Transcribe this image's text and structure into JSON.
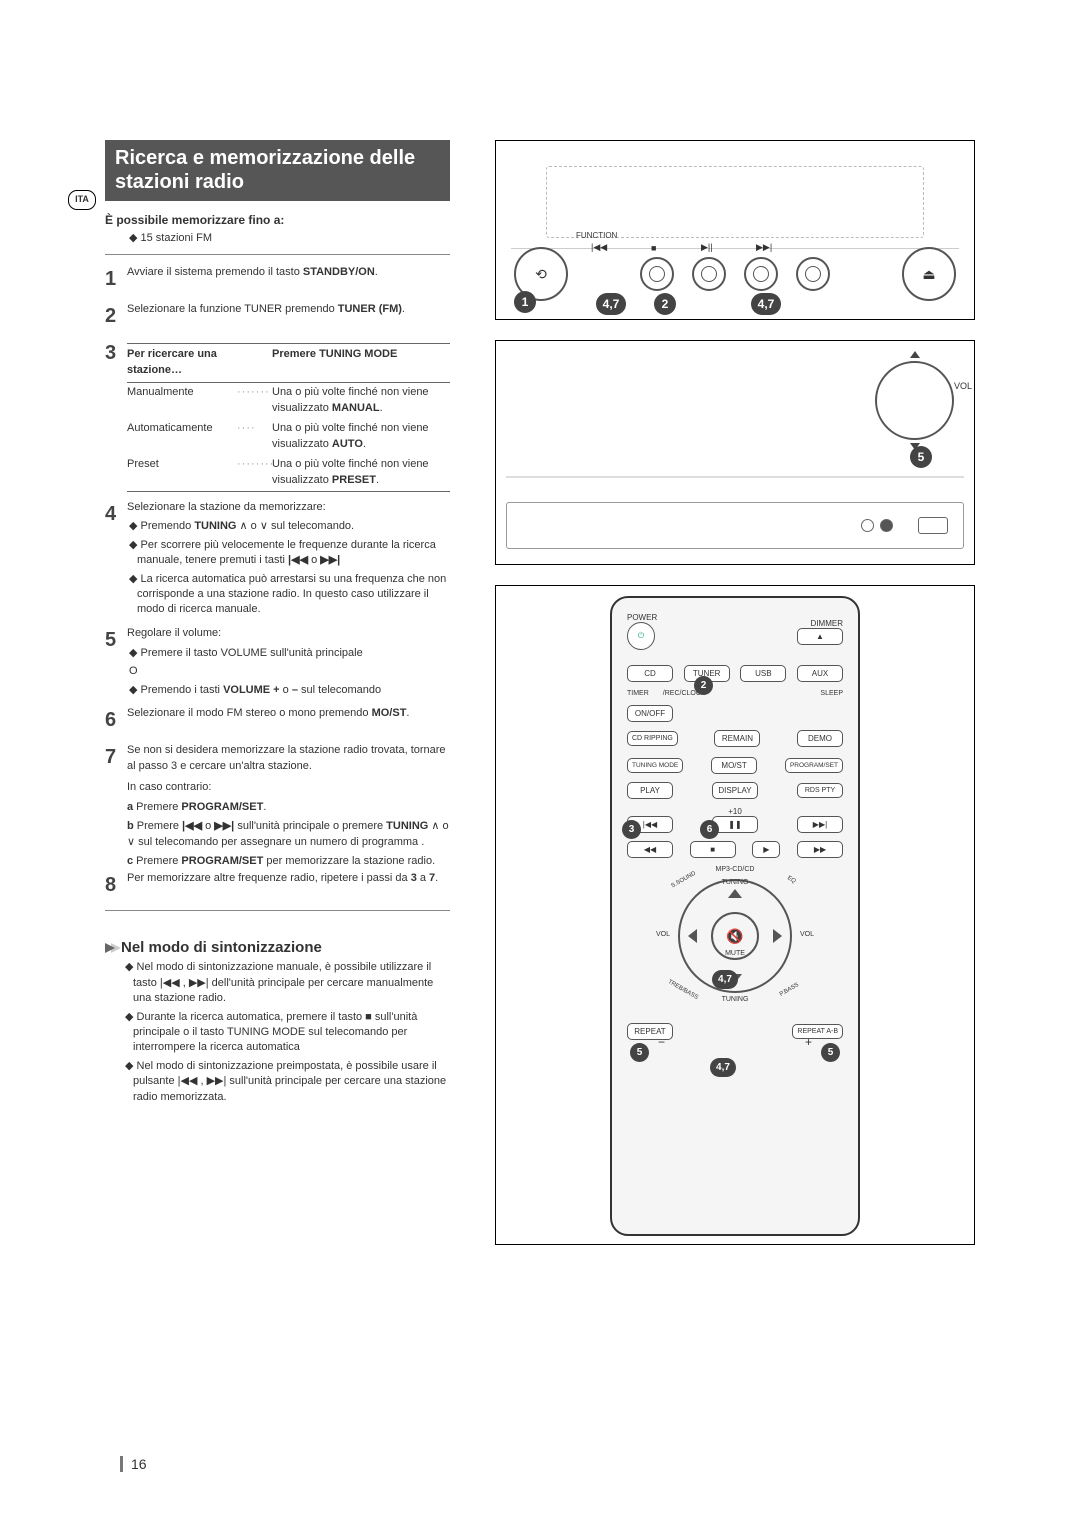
{
  "lang_badge": "ITA",
  "title": "Ricerca e memorizzazione delle stazioni radio",
  "intro_bold": "È possibile memorizzare fino a:",
  "intro_sub": "◆ 15 stazioni FM",
  "steps": {
    "s1": "Avviare il sistema premendo il tasto ",
    "s1b": "STANDBY/ON",
    "s2": "Selezionare la funzione TUNER premendo ",
    "s2b": "TUNER (FM)",
    "s3_header_l": "Per ricercare una stazione…",
    "s3_header_r": "Premere TUNING MODE",
    "s3_rows": [
      {
        "label": "Manualmente",
        "desc1": "Una o più volte finché non viene",
        "desc2": "visualizzato ",
        "bold": "MANUAL"
      },
      {
        "label": "Automaticamente",
        "desc1": "Una o più volte finché non viene",
        "desc2": "visualizzato ",
        "bold": "AUTO"
      },
      {
        "label": "Preset",
        "desc1": "Una o più volte finché non viene",
        "desc2": "visualizzato ",
        "bold": "PRESET"
      }
    ],
    "s4": "Selezionare la stazione da memorizzare:",
    "s4_bullets": [
      "◆ Premendo <b>TUNING</b> ∧ o ∨ sul telecomando.",
      "◆ Per scorrere più velocemente le frequenze durante la ricerca manuale, tenere premuti i tasti <b>|◀◀</b> o <b>▶▶|</b>",
      "◆ La ricerca automatica può arrestarsi su una frequenza che non corrisponde a una stazione radio. In questo caso utilizzare il modo di ricerca manuale."
    ],
    "s5": "Regolare il volume:",
    "s5_bullets": [
      "◆ Premere il tasto VOLUME sull'unità principale",
      "O",
      "◆ Premendo i tasti <b>VOLUME +</b> o <b>–</b> sul telecomando"
    ],
    "s6": "Selezionare il modo FM stereo o mono premendo ",
    "s6b": "MO/ST",
    "s7a": "Se non si desidera memorizzare la stazione radio trovata, tornare al passo 3 e cercare un'altra stazione.",
    "s7b": "In caso contrario:",
    "s7_sub": [
      "<b>a</b>  Premere <b>PROGRAM/SET</b>.",
      "<b>b</b>  Premere <b>|◀◀</b> o <b>▶▶|</b> sull'unità principale o premere <b>TUNING</b> ∧ o ∨  sul telecomando per assegnare un numero di programma .",
      "<b>c</b>  Premere <b>PROGRAM/SET</b> per memorizzare la stazione radio."
    ],
    "s8": "Per memorizzare altre frequenze radio, ripetere i passi da ",
    "s8b1": "3",
    "s8m": " a ",
    "s8b2": "7"
  },
  "tuning_section": {
    "title": "Nel modo di sintonizzazione",
    "bullets": [
      "◆ Nel modo di sintonizzazione manuale, è possibile utilizzare il tasto  |◀◀ , ▶▶|  dell'unità principale per cercare manualmente una stazione radio.",
      "◆ Durante la ricerca automatica, premere il tasto ■ sull'unità principale o il tasto TUNING MODE sul telecomando per interrompere la ricerca automatica",
      "◆ Nel modo di sintonizzazione preimpostata, è possibile usare il pulsante  |◀◀ , ▶▶| sull'unità principale per cercare una stazione radio memorizzata."
    ]
  },
  "main_unit": {
    "fn": "FUNCTION",
    "icons": [
      "⟲",
      "|◀◀",
      "■",
      "▶||",
      "▶▶|",
      "⏏"
    ],
    "callouts": [
      "1",
      "4,7",
      "2",
      "4,7"
    ]
  },
  "front": {
    "vol": "VOL",
    "callout": "5"
  },
  "remote": {
    "power": "POWER",
    "dimmer": "DIMMER",
    "row1": [
      "CD",
      "TUNER",
      "USB",
      "AUX"
    ],
    "row1b": [
      "TIMER",
      "/REC/CLOCK",
      "SLEEP"
    ],
    "onoff": "ON/OFF",
    "row2": [
      "CD RIPPING",
      "REMAIN",
      "DEMO"
    ],
    "row3": [
      "TUNING MODE",
      "MO/ST",
      "PROGRAM/SET"
    ],
    "row4": [
      "PLAY",
      "DISPLAY",
      "RDS PTY"
    ],
    "plus10": "+10",
    "trans": [
      "|◀◀",
      "❚❚",
      "▶▶|",
      "◀◀",
      "■",
      "▶",
      "▶▶"
    ],
    "mp3": "MP3-CD/CD",
    "tuning": "TUNING",
    "mute": "MUTE",
    "vol": "VOL",
    "sides": [
      "S.SOUND",
      "EQ",
      "TREB/BASS",
      "P.BASS"
    ],
    "bottom": [
      "REPEAT",
      "REPEAT A-B"
    ],
    "callouts": [
      "2",
      "3",
      "6",
      "4,7",
      "5",
      "4,7",
      "5"
    ]
  },
  "page_number": "16"
}
